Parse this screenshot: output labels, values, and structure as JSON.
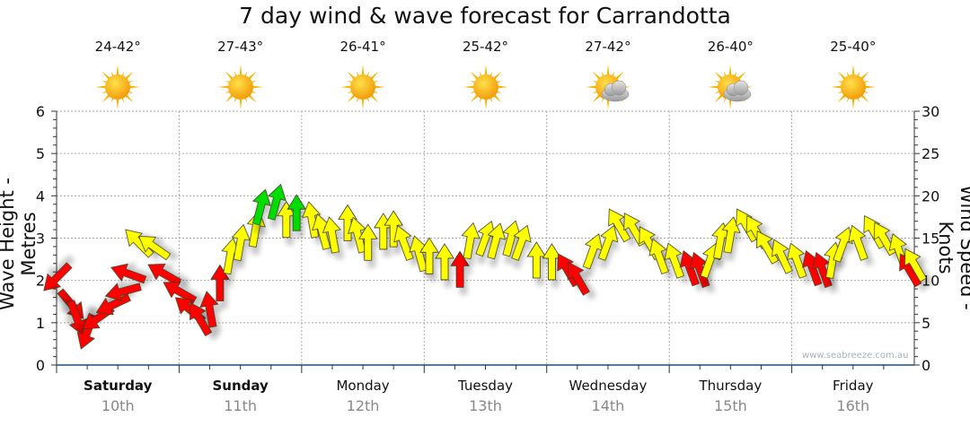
{
  "chart_data": {
    "type": "scatter",
    "title": "7 day wind & wave forecast for Carrandotta",
    "ylabel_left": "Wave Height - Metres",
    "ylabel_right": "Wind Speed - Knots",
    "ylim_left": [
      0,
      6
    ],
    "ylim_right": [
      0,
      30
    ],
    "left_ticks": [
      "0",
      "1",
      "2",
      "3",
      "4",
      "5",
      "6"
    ],
    "right_ticks": [
      "0",
      "5",
      "10",
      "15",
      "20",
      "25",
      "30"
    ],
    "grid": true,
    "watermark": "www.seabreeze.com.au",
    "days": [
      {
        "day": "Saturday",
        "date": "10th",
        "temp": "24-42°",
        "icon": "sun-icon",
        "bold": true
      },
      {
        "day": "Sunday",
        "date": "11th",
        "temp": "27-43°",
        "icon": "sun-icon",
        "bold": true
      },
      {
        "day": "Monday",
        "date": "12th",
        "temp": "26-41°",
        "icon": "sun-icon",
        "bold": false
      },
      {
        "day": "Tuesday",
        "date": "13th",
        "temp": "25-42°",
        "icon": "sun-icon",
        "bold": false
      },
      {
        "day": "Wednesday",
        "date": "14th",
        "temp": "27-42°",
        "icon": "partly-cloudy-icon",
        "bold": false
      },
      {
        "day": "Thursday",
        "date": "15th",
        "temp": "26-40°",
        "icon": "partly-cloudy-icon",
        "bold": false
      },
      {
        "day": "Friday",
        "date": "16th",
        "temp": "25-40°",
        "icon": "sun-icon",
        "bold": false
      }
    ],
    "colors": {
      "r": "#ff0000",
      "y": "#ffff00",
      "g": "#00dd00"
    },
    "wind_arrows": [
      {
        "h": 0,
        "kts": 10.3,
        "dir": 225,
        "c": "r"
      },
      {
        "h": 3,
        "kts": 7.1,
        "dir": 140,
        "c": "r"
      },
      {
        "h": 4,
        "kts": 5.5,
        "dir": 160,
        "c": "r"
      },
      {
        "h": 6,
        "kts": 3.9,
        "dir": 200,
        "c": "r"
      },
      {
        "h": 8,
        "kts": 5.5,
        "dir": 235,
        "c": "r"
      },
      {
        "h": 11,
        "kts": 7.1,
        "dir": 245,
        "c": "r"
      },
      {
        "h": 13,
        "kts": 8.7,
        "dir": 255,
        "c": "r"
      },
      {
        "h": 14,
        "kts": 10.8,
        "dir": 290,
        "c": "r"
      },
      {
        "h": 16,
        "kts": 14.5,
        "dir": 315,
        "c": "y"
      },
      {
        "h": 19,
        "kts": 14,
        "dir": 305,
        "c": "y"
      },
      {
        "h": 21,
        "kts": 10.8,
        "dir": 300,
        "c": "r"
      },
      {
        "h": 24,
        "kts": 8.7,
        "dir": 300,
        "c": "r"
      },
      {
        "h": 26,
        "kts": 6.6,
        "dir": 310,
        "c": "r"
      },
      {
        "h": 28,
        "kts": 5.5,
        "dir": 330,
        "c": "r"
      },
      {
        "h": 30,
        "kts": 6.6,
        "dir": 350,
        "c": "r"
      },
      {
        "h": 32,
        "kts": 9.7,
        "dir": 0,
        "c": "r"
      },
      {
        "h": 34,
        "kts": 12.9,
        "dir": 10,
        "c": "y"
      },
      {
        "h": 36,
        "kts": 14.5,
        "dir": 10,
        "c": "y"
      },
      {
        "h": 39,
        "kts": 16.1,
        "dir": 10,
        "c": "y"
      },
      {
        "h": 40,
        "kts": 18.7,
        "dir": 15,
        "c": "g"
      },
      {
        "h": 43,
        "kts": 19.3,
        "dir": 15,
        "c": "g"
      },
      {
        "h": 45,
        "kts": 17.2,
        "dir": 0,
        "c": "y"
      },
      {
        "h": 47,
        "kts": 18,
        "dir": 0,
        "c": "g"
      },
      {
        "h": 50,
        "kts": 17.2,
        "dir": 350,
        "c": "y"
      },
      {
        "h": 52,
        "kts": 15.8,
        "dir": 345,
        "c": "y"
      },
      {
        "h": 54,
        "kts": 15.4,
        "dir": 350,
        "c": "y"
      },
      {
        "h": 57,
        "kts": 16.8,
        "dir": 0,
        "c": "y"
      },
      {
        "h": 59,
        "kts": 15.4,
        "dir": 345,
        "c": "y"
      },
      {
        "h": 61,
        "kts": 14.5,
        "dir": 0,
        "c": "y"
      },
      {
        "h": 64,
        "kts": 15.8,
        "dir": 0,
        "c": "y"
      },
      {
        "h": 66,
        "kts": 16.1,
        "dir": 0,
        "c": "y"
      },
      {
        "h": 68,
        "kts": 14.5,
        "dir": 340,
        "c": "y"
      },
      {
        "h": 71,
        "kts": 13.2,
        "dir": 345,
        "c": "y"
      },
      {
        "h": 73,
        "kts": 12.9,
        "dir": 0,
        "c": "y"
      },
      {
        "h": 76,
        "kts": 12.2,
        "dir": 0,
        "c": "y"
      },
      {
        "h": 79,
        "kts": 11.3,
        "dir": 0,
        "c": "r"
      },
      {
        "h": 81,
        "kts": 14.7,
        "dir": 10,
        "c": "y"
      },
      {
        "h": 84,
        "kts": 15,
        "dir": 20,
        "c": "y"
      },
      {
        "h": 86,
        "kts": 14.7,
        "dir": 15,
        "c": "y"
      },
      {
        "h": 89,
        "kts": 15,
        "dir": 15,
        "c": "y"
      },
      {
        "h": 91,
        "kts": 14.5,
        "dir": 20,
        "c": "y"
      },
      {
        "h": 94,
        "kts": 12.4,
        "dir": 0,
        "c": "y"
      },
      {
        "h": 97,
        "kts": 12.2,
        "dir": 0,
        "c": "y"
      },
      {
        "h": 100,
        "kts": 11.3,
        "dir": 330,
        "c": "r"
      },
      {
        "h": 102,
        "kts": 10.3,
        "dir": 330,
        "c": "r"
      },
      {
        "h": 105,
        "kts": 13.5,
        "dir": 20,
        "c": "y"
      },
      {
        "h": 108,
        "kts": 14.5,
        "dir": 20,
        "c": "y"
      },
      {
        "h": 110,
        "kts": 16.6,
        "dir": 330,
        "c": "y"
      },
      {
        "h": 113,
        "kts": 16.1,
        "dir": 330,
        "c": "y"
      },
      {
        "h": 116,
        "kts": 14.5,
        "dir": 330,
        "c": "y"
      },
      {
        "h": 118,
        "kts": 12.9,
        "dir": 340,
        "c": "y"
      },
      {
        "h": 121,
        "kts": 12.4,
        "dir": 340,
        "c": "y"
      },
      {
        "h": 124,
        "kts": 11.5,
        "dir": 340,
        "c": "r"
      },
      {
        "h": 126,
        "kts": 11.3,
        "dir": 340,
        "c": "r"
      },
      {
        "h": 128,
        "kts": 12.4,
        "dir": 20,
        "c": "y"
      },
      {
        "h": 130,
        "kts": 14.7,
        "dir": 10,
        "c": "y"
      },
      {
        "h": 132,
        "kts": 15.4,
        "dir": 10,
        "c": "y"
      },
      {
        "h": 135,
        "kts": 16.6,
        "dir": 330,
        "c": "y"
      },
      {
        "h": 137,
        "kts": 15.8,
        "dir": 330,
        "c": "y"
      },
      {
        "h": 139,
        "kts": 14,
        "dir": 330,
        "c": "y"
      },
      {
        "h": 142,
        "kts": 12.9,
        "dir": 335,
        "c": "y"
      },
      {
        "h": 145,
        "kts": 12.4,
        "dir": 340,
        "c": "y"
      },
      {
        "h": 148,
        "kts": 11.5,
        "dir": 340,
        "c": "r"
      },
      {
        "h": 150,
        "kts": 11.3,
        "dir": 340,
        "c": "r"
      },
      {
        "h": 152,
        "kts": 12.4,
        "dir": 10,
        "c": "y"
      },
      {
        "h": 154,
        "kts": 14.3,
        "dir": 20,
        "c": "y"
      },
      {
        "h": 157,
        "kts": 14.5,
        "dir": 340,
        "c": "y"
      },
      {
        "h": 160,
        "kts": 15.8,
        "dir": 330,
        "c": "y"
      },
      {
        "h": 162,
        "kts": 15,
        "dir": 330,
        "c": "y"
      },
      {
        "h": 165,
        "kts": 13.5,
        "dir": 340,
        "c": "y"
      },
      {
        "h": 167,
        "kts": 11.3,
        "dir": 330,
        "c": "r"
      },
      {
        "h": 168,
        "kts": 11.9,
        "dir": 330,
        "c": "y"
      }
    ]
  }
}
